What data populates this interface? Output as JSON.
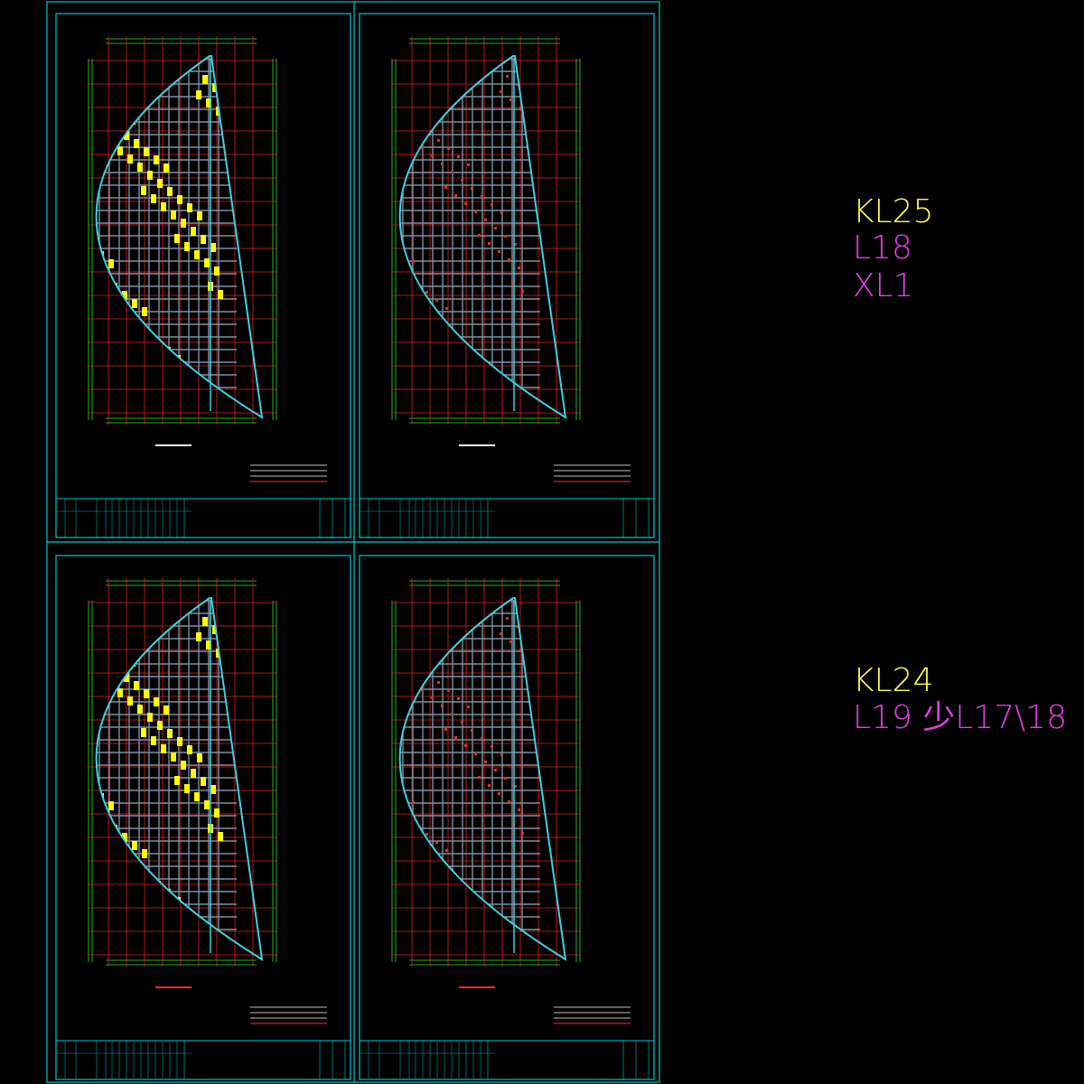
{
  "notes": [
    {
      "lines": [
        "KL25",
        "L18",
        "XL1"
      ]
    },
    {
      "lines": [
        "KL24",
        "L19 少L17\\18"
      ]
    }
  ]
}
